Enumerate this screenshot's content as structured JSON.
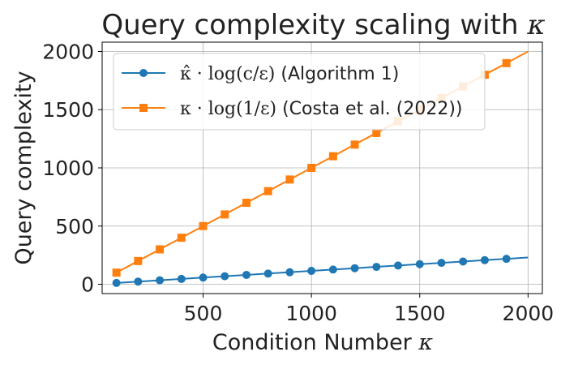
{
  "chart_data": {
    "type": "line",
    "title": "Query complexity scaling with κ",
    "title_text": "Query complexity scaling with ",
    "title_symbol": "κ",
    "xlabel": "Condition Number κ",
    "xlabel_text": "Condition Number ",
    "xlabel_symbol": "κ",
    "ylabel": "Query complexity",
    "xlim": [
      34,
      2066
    ],
    "ylim": [
      -80,
      2080
    ],
    "x_ticks": [
      500,
      1000,
      1500,
      2000
    ],
    "y_ticks": [
      0,
      500,
      1000,
      1500,
      2000
    ],
    "x_tick_labels": [
      "500",
      "1000",
      "1500",
      "2000"
    ],
    "y_tick_labels": [
      "0",
      "500",
      "1000",
      "1500",
      "2000"
    ],
    "grid": true,
    "legend_position": "upper-left",
    "x": [
      100,
      200,
      300,
      400,
      500,
      600,
      700,
      800,
      900,
      1000,
      1100,
      1200,
      1300,
      1400,
      1500,
      1600,
      1700,
      1800,
      1900,
      2000
    ],
    "series": [
      {
        "name": "κ̂ · log(c/ε) (Algorithm 1)",
        "legend_math": "κ̂ · log(c/ε)",
        "legend_text": " (Algorithm 1)",
        "color": "#1f77b4",
        "marker": "circle",
        "values": [
          11.5,
          23,
          34.5,
          46,
          57.5,
          69,
          80.5,
          92,
          103.5,
          115,
          126.5,
          138,
          149.5,
          161,
          172.5,
          184,
          195.5,
          207,
          218.5,
          230
        ]
      },
      {
        "name": "κ · log(1/ε) (Costa et al. (2022))",
        "legend_math": "κ · log(1/ε)",
        "legend_text": " (Costa et al. (2022))",
        "color": "#ff7f0e",
        "marker": "square",
        "values": [
          100,
          200,
          300,
          400,
          500,
          600,
          700,
          800,
          900,
          1000,
          1100,
          1200,
          1300,
          1400,
          1500,
          1600,
          1700,
          1800,
          1900,
          2000
        ]
      }
    ]
  }
}
